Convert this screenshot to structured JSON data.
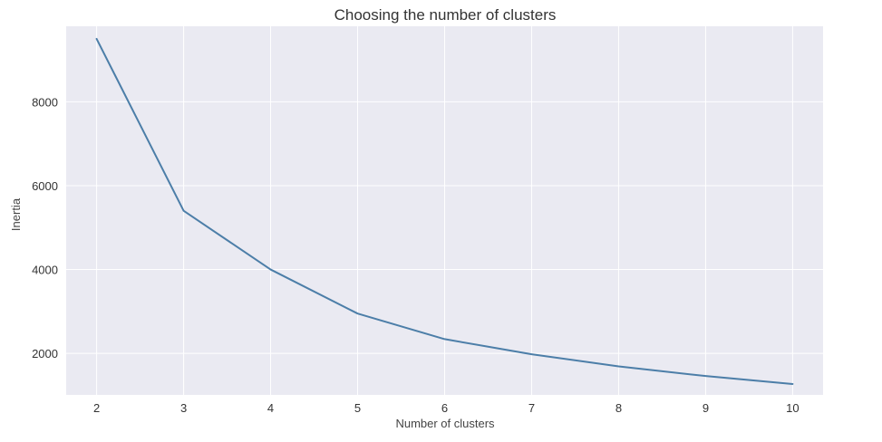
{
  "colors": {
    "plot_background": "#eaeaf2",
    "grid": "#ffffff",
    "line": "#4c7ea8"
  },
  "chart_data": {
    "type": "line",
    "title": "Choosing the number of clusters",
    "xlabel": "Number of clusters",
    "ylabel": "Inertia",
    "x": [
      2,
      3,
      4,
      5,
      6,
      7,
      8,
      9,
      10
    ],
    "series": [
      {
        "values": [
          9500,
          5400,
          4000,
          2950,
          2340,
          1980,
          1690,
          1460,
          1270
        ]
      }
    ],
    "xlim": [
      1.65,
      10.35
    ],
    "ylim": [
      1010,
      9800
    ],
    "xticks": [
      2,
      3,
      4,
      5,
      6,
      7,
      8,
      9,
      10
    ],
    "yticks": [
      2000,
      4000,
      6000,
      8000
    ],
    "grid": true,
    "legend": "none"
  }
}
